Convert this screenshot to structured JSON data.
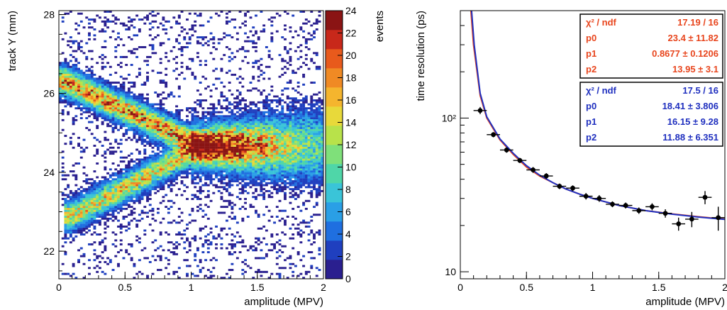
{
  "chart_data": [
    {
      "type": "heatmap",
      "title": "",
      "xlabel": "amplitude (MPV)",
      "ylabel": "track Y (mm)",
      "zlabel": "events",
      "xlim": [
        0,
        2
      ],
      "ylim": [
        21.3,
        28.1
      ],
      "zlim": [
        0,
        24
      ],
      "x_ticks": [
        "0",
        "0.5",
        "1",
        "1.5",
        "2"
      ],
      "y_ticks": [
        "22",
        "24",
        "26",
        "28"
      ],
      "z_ticks": [
        "0",
        "2",
        "4",
        "6",
        "8",
        "10",
        "12",
        "14",
        "16",
        "18",
        "20",
        "22",
        "24"
      ],
      "palette": [
        "#2a1f8f",
        "#1f3fbf",
        "#1f6fe0",
        "#2a9fe6",
        "#3ac4d8",
        "#4fd6a8",
        "#7fe07a",
        "#b8e24a",
        "#e8d93a",
        "#f5b52e",
        "#f08a24",
        "#e85a1c",
        "#c8281a",
        "#8a1414"
      ],
      "structure": [
        {
          "name": "upper band",
          "from": [
            0.05,
            26.3
          ],
          "to": [
            1.05,
            24.7
          ],
          "peak_events": 17
        },
        {
          "name": "lower band",
          "from": [
            0.1,
            22.9
          ],
          "to": [
            1.05,
            24.6
          ],
          "peak_events": 14
        }
      ]
    },
    {
      "type": "scatter",
      "title": "",
      "xlabel": "amplitude (MPV)",
      "ylabel": "time resolution  (ps)",
      "xlim": [
        0,
        2
      ],
      "ylim": [
        9,
        500
      ],
      "yscale": "log",
      "x_ticks": [
        "0",
        "0.5",
        "1",
        "1.5",
        "2"
      ],
      "y_ticks": [
        "10",
        "10²"
      ],
      "points": [
        {
          "x": 0.15,
          "y": 112,
          "yerr": 6
        },
        {
          "x": 0.25,
          "y": 78,
          "yerr": 3
        },
        {
          "x": 0.35,
          "y": 62,
          "yerr": 2.5
        },
        {
          "x": 0.45,
          "y": 53,
          "yerr": 2
        },
        {
          "x": 0.55,
          "y": 46,
          "yerr": 2
        },
        {
          "x": 0.65,
          "y": 42,
          "yerr": 1.8
        },
        {
          "x": 0.75,
          "y": 36,
          "yerr": 1.5
        },
        {
          "x": 0.85,
          "y": 35,
          "yerr": 1.5
        },
        {
          "x": 0.95,
          "y": 31,
          "yerr": 1.5
        },
        {
          "x": 1.05,
          "y": 30,
          "yerr": 1.5
        },
        {
          "x": 1.15,
          "y": 27.5,
          "yerr": 1.2
        },
        {
          "x": 1.25,
          "y": 27,
          "yerr": 1.2
        },
        {
          "x": 1.35,
          "y": 25,
          "yerr": 1.2
        },
        {
          "x": 1.45,
          "y": 26.5,
          "yerr": 1.4
        },
        {
          "x": 1.55,
          "y": 24,
          "yerr": 1.5
        },
        {
          "x": 1.65,
          "y": 20.5,
          "yerr": 2
        },
        {
          "x": 1.75,
          "y": 22,
          "yerr": 2.5
        },
        {
          "x": 1.85,
          "y": 30.5,
          "yerr": 3
        },
        {
          "x": 1.95,
          "y": 22.5,
          "yerr": 4
        }
      ],
      "fits": [
        {
          "color": "#e8451d",
          "stats": [
            {
              "label": "χ² / ndf",
              "value": "17.19 / 16"
            },
            {
              "label": "p0",
              "value": "23.4 ± 11.82"
            },
            {
              "label": "p1",
              "value": "0.8677 ± 0.1206"
            },
            {
              "label": "p2",
              "value": "13.95 ±  3.1"
            }
          ]
        },
        {
          "color": "#1f2fbf",
          "stats": [
            {
              "label": "χ² / ndf",
              "value": "17.5 / 16"
            },
            {
              "label": "p0",
              "value": "18.41 ± 3.806"
            },
            {
              "label": "p1",
              "value": "16.15 ±  9.28"
            },
            {
              "label": "p2",
              "value": "11.88 ± 6.351"
            }
          ]
        }
      ],
      "curves": [
        {
          "color": "#e8451d",
          "points": [
            [
              0.08,
              500
            ],
            [
              0.1,
              300
            ],
            [
              0.15,
              140
            ],
            [
              0.2,
              100
            ],
            [
              0.3,
              72
            ],
            [
              0.4,
              58
            ],
            [
              0.5,
              48
            ],
            [
              0.6,
              42
            ],
            [
              0.7,
              38
            ],
            [
              0.8,
              34.5
            ],
            [
              0.9,
              32
            ],
            [
              1.0,
              30
            ],
            [
              1.2,
              27
            ],
            [
              1.4,
              25
            ],
            [
              1.6,
              23.8
            ],
            [
              1.8,
              22.8
            ],
            [
              2.0,
              22
            ]
          ]
        },
        {
          "color": "#1f2fbf",
          "points": [
            [
              0.085,
              500
            ],
            [
              0.105,
              300
            ],
            [
              0.15,
              145
            ],
            [
              0.2,
              102
            ],
            [
              0.3,
              73
            ],
            [
              0.4,
              59
            ],
            [
              0.5,
              49
            ],
            [
              0.6,
              42.5
            ],
            [
              0.7,
              38
            ],
            [
              0.8,
              34.5
            ],
            [
              0.9,
              32
            ],
            [
              1.0,
              30
            ],
            [
              1.2,
              27
            ],
            [
              1.4,
              25
            ],
            [
              1.6,
              23.7
            ],
            [
              1.8,
              22.7
            ],
            [
              2.0,
              21.9
            ]
          ]
        }
      ]
    }
  ]
}
